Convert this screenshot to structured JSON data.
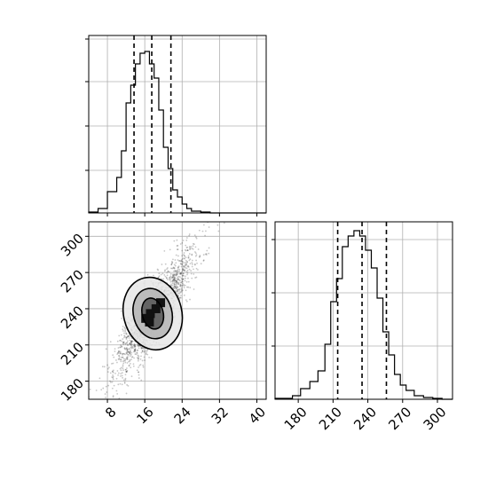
{
  "chart_data": [
    {
      "panel": "top-left",
      "type": "histogram",
      "xlim": [
        4,
        42
      ],
      "ylim": [
        0,
        1.0
      ],
      "grid": true,
      "x_bin_edges": [
        4,
        6,
        8,
        10,
        11,
        12,
        13,
        14,
        15,
        16,
        17,
        18,
        19,
        20,
        21,
        22,
        23,
        24,
        25,
        26,
        28,
        30,
        32,
        34,
        36,
        38,
        40,
        42
      ],
      "counts": [
        0.005,
        0.025,
        0.12,
        0.2,
        0.35,
        0.62,
        0.72,
        0.84,
        0.9,
        0.91,
        0.84,
        0.76,
        0.58,
        0.37,
        0.25,
        0.13,
        0.09,
        0.05,
        0.025,
        0.01,
        0.005,
        0.0,
        0.0,
        0.0,
        0.0,
        0.0,
        0.0
      ],
      "quantile_lines_x": [
        13.7,
        17.5,
        21.6
      ],
      "x_tick_marks": [
        8,
        16,
        24,
        32,
        40
      ],
      "y_tick_marks": [
        0.24,
        0.49,
        0.74,
        0.98
      ]
    },
    {
      "panel": "bottom-left",
      "type": "scatter",
      "xlim": [
        4,
        42
      ],
      "ylim": [
        165,
        312
      ],
      "grid": true,
      "x_ticks": [
        8,
        16,
        24,
        32,
        40
      ],
      "y_ticks": [
        180,
        210,
        240,
        270,
        300
      ],
      "x_tick_labels": [
        "8",
        "16",
        "24",
        "32",
        "40"
      ],
      "y_tick_labels": [
        "180",
        "210",
        "240",
        "270",
        "300"
      ],
      "density_center": {
        "x": 17.8,
        "y": 236
      },
      "contour_levels": [
        {
          "center": [
            17.7,
            236
          ],
          "semi_axes": [
            3.0,
            21.0
          ],
          "slope": 3.2
        },
        {
          "center": [
            17.7,
            236
          ],
          "semi_axes": [
            5.5,
            34.0
          ],
          "slope": 3.2
        },
        {
          "center": [
            17.7,
            236
          ],
          "semi_axes": [
            8.3,
            49.0
          ],
          "slope": 3.2
        }
      ]
    },
    {
      "panel": "bottom-right",
      "type": "histogram",
      "xlim": [
        160,
        313
      ],
      "ylim": [
        0,
        1.0
      ],
      "grid": true,
      "x_bin_edges": [
        160,
        175,
        182,
        190,
        197,
        203,
        208,
        213,
        218,
        223,
        228,
        233,
        238,
        243,
        248,
        253,
        258,
        263,
        268,
        273,
        280,
        288,
        296,
        304,
        313
      ],
      "counts": [
        0.005,
        0.02,
        0.06,
        0.1,
        0.16,
        0.31,
        0.55,
        0.68,
        0.86,
        0.92,
        0.95,
        0.92,
        0.84,
        0.74,
        0.57,
        0.38,
        0.25,
        0.14,
        0.08,
        0.05,
        0.02,
        0.01,
        0.005,
        0.0
      ],
      "quantile_lines_x": [
        214,
        235,
        256
      ],
      "x_ticks": [
        180,
        210,
        240,
        270,
        300
      ],
      "x_tick_labels": [
        "180",
        "210",
        "240",
        "270",
        "300"
      ],
      "y_tick_marks": [
        0.3,
        0.6,
        0.9
      ]
    }
  ]
}
